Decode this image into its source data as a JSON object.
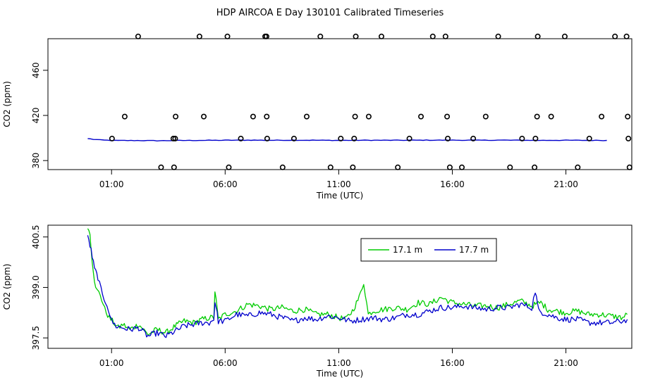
{
  "title": "HDP AIRCOA E  Day 130101  Calibrated Timeseries",
  "chart_data": [
    {
      "type": "scatter",
      "xlabel": "Time (UTC)",
      "ylabel": "CO2 (ppm)",
      "xlim": [
        -1.8,
        23.9
      ],
      "ylim": [
        372,
        488
      ],
      "x_ticks": [
        {
          "v": 1,
          "label": "01:00"
        },
        {
          "v": 6,
          "label": "06:00"
        },
        {
          "v": 11,
          "label": "11:00"
        },
        {
          "v": 16,
          "label": "16:00"
        },
        {
          "v": 21,
          "label": "21:00"
        }
      ],
      "y_ticks": [
        {
          "v": 380,
          "label": "380"
        },
        {
          "v": 420,
          "label": "420"
        },
        {
          "v": 460,
          "label": "460"
        }
      ],
      "line": {
        "color": "#0000cc",
        "x": [
          -0.05,
          0.2,
          0.5,
          1,
          2,
          3,
          4,
          5,
          6,
          7,
          8,
          9,
          10,
          11,
          12,
          13,
          14,
          15,
          16,
          17,
          18,
          19,
          20,
          21,
          22,
          22.8
        ],
        "y": [
          399.5,
          398.8,
          398.3,
          397.8,
          397.8,
          397.6,
          397.8,
          397.9,
          398,
          398.1,
          398,
          398.1,
          398,
          397.9,
          398,
          398,
          398,
          398.1,
          398.1,
          398,
          398.1,
          398,
          397.9,
          398,
          397.9,
          397.9
        ]
      },
      "points": {
        "marker": "open-circle",
        "x": [
          1.02,
          1.58,
          2.17,
          3.18,
          3.72,
          3.75,
          3.8,
          3.82,
          4.87,
          5.06,
          6.1,
          6.16,
          6.69,
          7.23,
          7.76,
          7.82,
          7.83,
          7.85,
          8.53,
          9.03,
          9.59,
          10.19,
          10.64,
          11.09,
          11.62,
          11.68,
          11.72,
          11.75,
          12.32,
          12.88,
          13.6,
          14.11,
          14.62,
          15.14,
          15.7,
          15.77,
          15.8,
          15.89,
          16.42,
          16.92,
          17.47,
          18.02,
          18.54,
          19.07,
          19.62,
          19.66,
          19.73,
          19.76,
          20.35,
          20.95,
          21.52,
          22.03,
          22.57,
          23.16,
          23.67,
          23.72,
          23.75,
          23.8
        ],
        "y": [
          399.5,
          419,
          490,
          374,
          399.5,
          374,
          399.5,
          419,
          490,
          419,
          490,
          374,
          399.5,
          419,
          490,
          490,
          419,
          399.5,
          374,
          399.5,
          419,
          490,
          374,
          399.5,
          374,
          399.5,
          419,
          490,
          419,
          490,
          374,
          399.5,
          419,
          490,
          490,
          419,
          399.5,
          374,
          374,
          399.5,
          419,
          490,
          374,
          399.5,
          374,
          399.5,
          419,
          490,
          419,
          490,
          374,
          399.5,
          419,
          490,
          490,
          419,
          399.5,
          374
        ]
      }
    },
    {
      "type": "line",
      "xlabel": "Time (UTC)",
      "ylabel": "CO2 (ppm)",
      "xlim": [
        -1.8,
        23.9
      ],
      "ylim": [
        397.19,
        400.85
      ],
      "x_ticks": [
        {
          "v": 1,
          "label": "01:00"
        },
        {
          "v": 6,
          "label": "06:00"
        },
        {
          "v": 11,
          "label": "11:00"
        },
        {
          "v": 16,
          "label": "16:00"
        },
        {
          "v": 21,
          "label": "21:00"
        }
      ],
      "y_ticks": [
        {
          "v": 397.5,
          "label": "397.5"
        },
        {
          "v": 399.0,
          "label": "399.0"
        },
        {
          "v": 400.5,
          "label": "400.5"
        }
      ],
      "legend": {
        "position": "top-right",
        "entries": [
          {
            "label": "17.1 m",
            "color": "#00cc00"
          },
          {
            "label": "17.7 m",
            "color": "#0000cc"
          }
        ]
      },
      "series": [
        {
          "name": "17.1 m",
          "color": "#00cc00",
          "x": [
            -0.05,
            0.05,
            0.15,
            0.3,
            0.5,
            0.7,
            0.9,
            1.1,
            1.3,
            1.5,
            1.8,
            2.2,
            2.6,
            3.0,
            3.4,
            3.8,
            4.2,
            4.6,
            5.0,
            5.3,
            5.5,
            5.55,
            5.7,
            6.0,
            6.5,
            7.0,
            7.5,
            8.0,
            8.5,
            9.0,
            9.5,
            10.0,
            10.5,
            11.0,
            11.3,
            11.6,
            11.9,
            12.1,
            12.3,
            12.5,
            13.0,
            13.5,
            14.0,
            14.5,
            15.0,
            15.5,
            16.0,
            16.5,
            17.0,
            17.5,
            18.0,
            18.5,
            19.0,
            19.5,
            19.9,
            20.2,
            20.6,
            21.0,
            21.5,
            22.0,
            22.5,
            23.0,
            23.5,
            23.7
          ],
          "y": [
            400.75,
            400.6,
            399.8,
            398.95,
            398.8,
            398.35,
            398.1,
            397.95,
            397.8,
            397.9,
            397.75,
            397.9,
            397.6,
            397.75,
            397.65,
            397.85,
            398.0,
            397.95,
            398.05,
            398.1,
            398.1,
            398.9,
            398.05,
            398.2,
            398.3,
            398.5,
            398.45,
            398.35,
            398.4,
            398.3,
            398.35,
            398.2,
            398.2,
            398.1,
            398.05,
            398.3,
            398.7,
            399.15,
            398.2,
            398.3,
            398.35,
            398.4,
            398.35,
            398.55,
            398.5,
            398.7,
            398.55,
            398.5,
            398.45,
            398.45,
            398.4,
            398.5,
            398.6,
            398.45,
            398.55,
            398.35,
            398.3,
            398.25,
            398.3,
            398.2,
            398.2,
            398.15,
            398.1,
            398.2
          ],
          "jitter": 0.09
        },
        {
          "name": "17.7 m",
          "color": "#0000cc",
          "x": [
            -0.05,
            0.1,
            0.25,
            0.4,
            0.6,
            0.8,
            1.0,
            1.2,
            1.5,
            1.8,
            2.2,
            2.6,
            3.0,
            3.4,
            3.8,
            4.2,
            4.6,
            5.0,
            5.3,
            5.5,
            5.55,
            5.7,
            6.0,
            6.5,
            7.0,
            7.5,
            8.0,
            8.5,
            9.0,
            9.5,
            10.0,
            10.5,
            11.0,
            11.5,
            12.0,
            12.5,
            13.0,
            13.5,
            14.0,
            14.5,
            15.0,
            15.5,
            16.0,
            16.5,
            17.0,
            17.5,
            18.0,
            18.5,
            19.0,
            19.5,
            19.65,
            19.8,
            20.2,
            20.6,
            21.0,
            21.5,
            22.0,
            22.5,
            23.0,
            23.5,
            23.7
          ],
          "y": [
            400.55,
            400.1,
            399.55,
            399.3,
            398.75,
            398.5,
            398.0,
            397.85,
            397.8,
            397.75,
            397.8,
            397.55,
            397.65,
            397.55,
            397.7,
            397.85,
            397.9,
            397.95,
            397.95,
            398.05,
            398.6,
            398.0,
            398.0,
            398.2,
            398.15,
            398.25,
            398.2,
            398.1,
            398.0,
            398.1,
            398.05,
            398.15,
            398.1,
            398.0,
            398.05,
            398.1,
            398.05,
            398.1,
            398.2,
            398.2,
            398.3,
            398.4,
            398.4,
            398.45,
            398.4,
            398.35,
            398.4,
            398.4,
            398.5,
            398.4,
            398.9,
            398.3,
            398.2,
            398.1,
            398.05,
            398.05,
            397.95,
            397.95,
            397.95,
            398.0,
            398.05
          ],
          "jitter": 0.09
        }
      ]
    }
  ]
}
